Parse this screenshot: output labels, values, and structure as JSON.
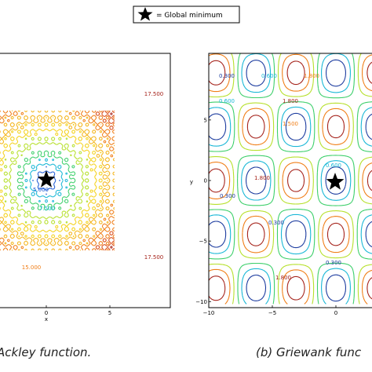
{
  "legend": {
    "marker_label": "= Global minimum"
  },
  "captions": {
    "a": "Ackley function.",
    "b": "(b) Griewank func"
  },
  "chart_data": [
    {
      "type": "contour",
      "function": "Ackley",
      "caption": "Ackley function.",
      "xlabel": "x",
      "ylabel": "",
      "xlim": [
        -10,
        10
      ],
      "ylim": [
        -10,
        10
      ],
      "x_ticks": [
        0,
        5
      ],
      "x_tick_labels": [
        "0",
        "5"
      ],
      "contour_levels": [
        2.5,
        5,
        7.5,
        10,
        12.5,
        15,
        17.5,
        20
      ],
      "contour_labels": [
        "5.000",
        "7.500",
        "15.000",
        "17.500",
        "17.500"
      ],
      "colormap": [
        "#1a237e",
        "#1e5bd6",
        "#18b7d6",
        "#3ccf6a",
        "#b6e02a",
        "#f4d21b",
        "#f07e17",
        "#a5221a"
      ],
      "global_minimum": {
        "x": 0,
        "y": 0,
        "marker": "star"
      },
      "grid": false,
      "legend_position": "top-center"
    },
    {
      "type": "contour",
      "function": "Griewank",
      "caption": "(b) Griewank func",
      "xlabel": "",
      "ylabel": "y",
      "xlim": [
        -10,
        10
      ],
      "ylim": [
        -10,
        10
      ],
      "x_ticks": [
        -10,
        -5,
        0
      ],
      "x_tick_labels": [
        "−10",
        "−5",
        "0"
      ],
      "y_ticks": [
        5,
        0,
        -5,
        -10
      ],
      "y_tick_labels": [
        "5",
        "0",
        "−5",
        "−10"
      ],
      "contour_levels": [
        0.3,
        0.6,
        0.9,
        1.2,
        1.5,
        1.8
      ],
      "contour_labels": [
        "0.300",
        "0.600",
        "0.900",
        "1.200",
        "1.500",
        "1.800"
      ],
      "colormap": [
        "#1a237e",
        "#1e5bd6",
        "#18b7d6",
        "#3ccf6a",
        "#f4d21b",
        "#f07e17",
        "#a5221a"
      ],
      "global_minimum": {
        "x": 0,
        "y": 0,
        "marker": "star"
      },
      "grid": false
    }
  ]
}
